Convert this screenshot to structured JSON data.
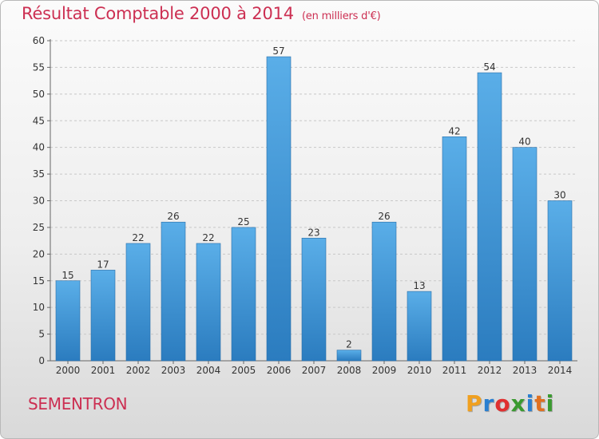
{
  "chart_data": {
    "type": "bar",
    "title": "Résultat Comptable 2000 à 2014",
    "subtitle": "(en milliers d'€)",
    "categories": [
      "2000",
      "2001",
      "2002",
      "2003",
      "2004",
      "2005",
      "2006",
      "2007",
      "2008",
      "2009",
      "2010",
      "2011",
      "2012",
      "2013",
      "2014"
    ],
    "values": [
      15,
      17,
      22,
      26,
      22,
      25,
      57,
      23,
      2,
      26,
      13,
      42,
      54,
      40,
      30
    ],
    "ylim": [
      0,
      60
    ],
    "yticks": [
      0,
      5,
      10,
      15,
      20,
      25,
      30,
      35,
      40,
      45,
      50,
      55,
      60
    ],
    "grid": "horizontal dashed",
    "xlabel": "",
    "ylabel": ""
  },
  "place_name": "SEMENTRON",
  "logo": {
    "text": "Proxiti",
    "letters": [
      "P",
      "r",
      "o",
      "x",
      "i",
      "t",
      "i"
    ],
    "colors": [
      "#f0a020",
      "#2a7fd0",
      "#e03030",
      "#3a9a30",
      "#2a7fd0",
      "#e07020",
      "#3a9a30"
    ]
  },
  "colors": {
    "title": "#cc2f52",
    "bar_top": "#5aaee8",
    "bar_bottom": "#2b7cbf",
    "grid": "#c8c8c8",
    "axis_text": "#333333"
  }
}
